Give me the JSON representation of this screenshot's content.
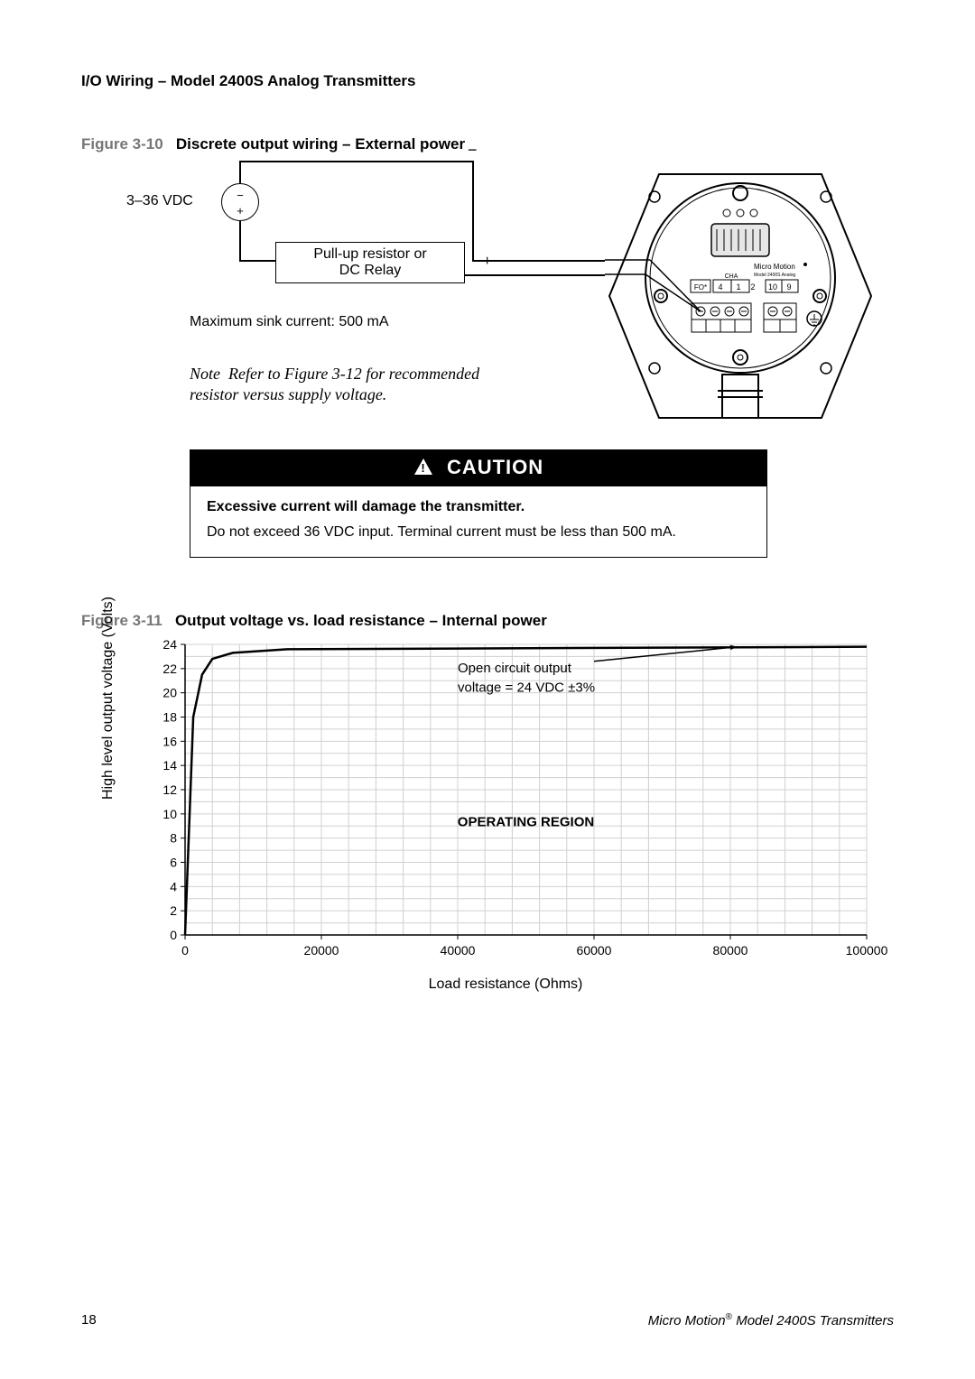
{
  "header": "I/O Wiring – Model 2400S Analog Transmitters",
  "fig10": {
    "prefix": "Figure 3-10",
    "title": "Discrete output wiring – External power",
    "vdc_label": "3–36 VDC",
    "resistor_label_line1": "Pull-up resistor or",
    "resistor_label_line2": "DC Relay",
    "sink_text": "Maximum sink current: 500 mA",
    "note_a": "Note",
    "note_b": "Refer to Figure 3-12 for recommended resistor versus supply voltage.",
    "plus": "+",
    "minus": "−",
    "device_label_top": "Micro Motion",
    "device_label_sub": "Model 2400S Analog",
    "terminal_labels": [
      "4",
      "1",
      "2",
      "10",
      "9"
    ]
  },
  "caution": {
    "bar": "CAUTION",
    "bold": "Excessive current will damage the transmitter.",
    "body": "Do not exceed 36 VDC input. Terminal current must be less than 500 mA."
  },
  "fig11": {
    "prefix": "Figure 3-11",
    "title": "Output voltage vs. load resistance – Internal power",
    "chart": {
      "type": "line",
      "x_range": [
        0,
        100000
      ],
      "y_range": [
        0,
        24
      ],
      "x_ticks": [
        0,
        20000,
        40000,
        60000,
        80000,
        100000
      ],
      "y_ticks": [
        0,
        2,
        4,
        6,
        8,
        10,
        12,
        14,
        16,
        18,
        20,
        22,
        24
      ],
      "x_minor_step": 4000,
      "y_minor_step": 1,
      "ylabel": "High level output voltage (Volts)",
      "xlabel": "Load resistance (Ohms)",
      "series": {
        "points": [
          [
            0,
            0
          ],
          [
            1200,
            18
          ],
          [
            2500,
            21.5
          ],
          [
            4000,
            22.8
          ],
          [
            7000,
            23.3
          ],
          [
            15000,
            23.6
          ],
          [
            100000,
            23.8
          ]
        ],
        "color": "#000000",
        "width": 2.5
      },
      "label_open": {
        "text1": "Open circuit output",
        "text2": "voltage = 24 VDC ±3%",
        "arrow_from": [
          60000,
          22.6
        ],
        "arrow_to": [
          81000,
          23.8
        ]
      },
      "label_region": {
        "text": "OPERATING REGION",
        "at": [
          50000,
          9
        ]
      },
      "grid_color": "#d0d0d0",
      "axis_color": "#000000",
      "background": "#ffffff",
      "label_fontsize": 15,
      "tick_fontsize": 14
    }
  },
  "footer": {
    "page": "18",
    "right_a": "Micro Motion",
    "right_b": " Model 2400S Transmitters",
    "reg": "®"
  }
}
